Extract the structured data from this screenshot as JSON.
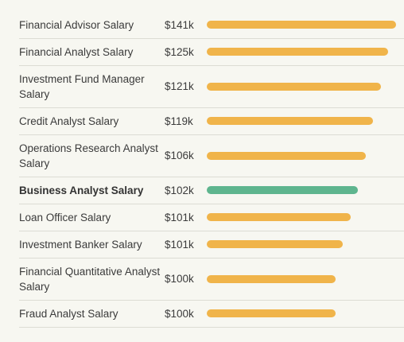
{
  "colors": {
    "default_bar": "#f0b44a",
    "highlight_bar": "#5eb58e"
  },
  "chart_data": {
    "type": "bar",
    "orientation": "horizontal",
    "categories": [
      "Financial Advisor Salary",
      "Financial Analyst Salary",
      "Investment Fund Manager Salary",
      "Credit Analyst Salary",
      "Operations Research Analyst Salary",
      "Business Analyst Salary",
      "Loan Officer Salary",
      "Investment Banker Salary",
      "Financial Quantitative Analyst Salary",
      "Fraud Analyst Salary"
    ],
    "values": [
      141,
      125,
      121,
      119,
      106,
      102,
      101,
      101,
      100,
      100
    ],
    "value_labels": [
      "$141k",
      "$125k",
      "$121k",
      "$119k",
      "$106k",
      "$102k",
      "$101k",
      "$101k",
      "$100k",
      "$100k"
    ],
    "bar_fill_fraction": [
      1.0,
      0.96,
      0.92,
      0.88,
      0.84,
      0.8,
      0.76,
      0.72,
      0.68,
      0.68
    ],
    "highlight_index": 5,
    "unit": "thousand USD"
  }
}
